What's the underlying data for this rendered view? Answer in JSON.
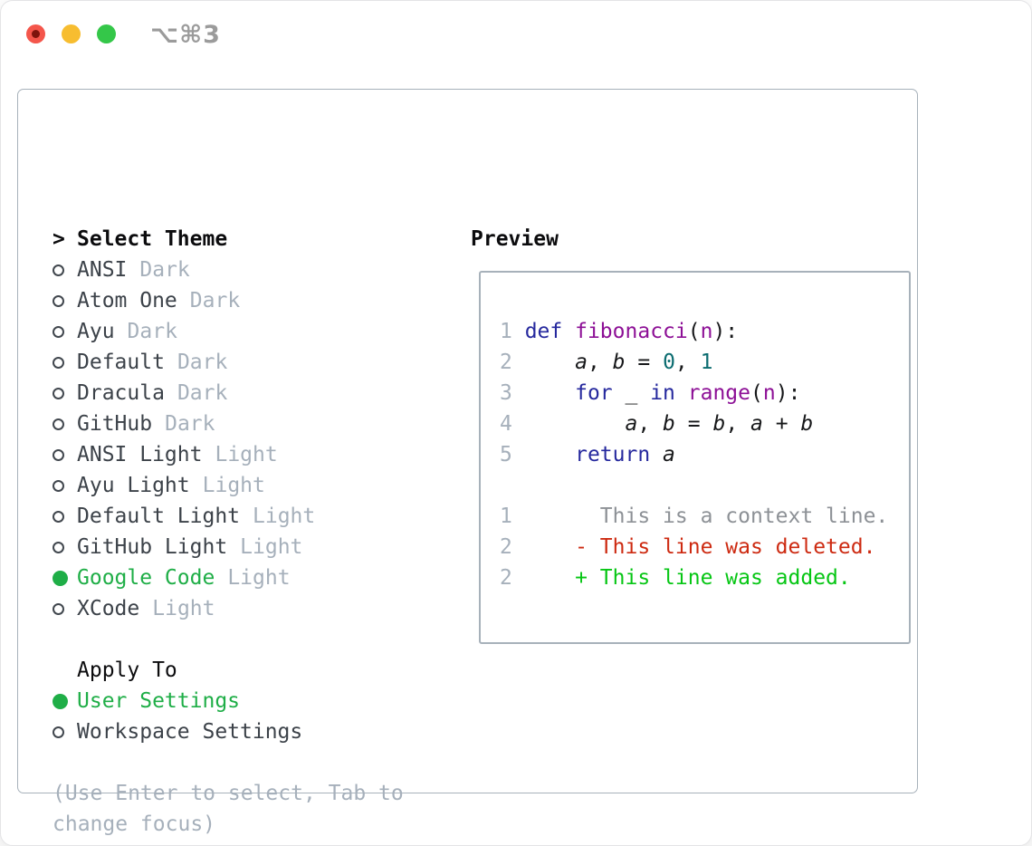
{
  "window": {
    "title": "⌥⌘3"
  },
  "theme_panel": {
    "header": {
      "prompt": ">",
      "label": "Select Theme"
    },
    "themes": [
      {
        "name": "ANSI",
        "variant": "Dark",
        "selected": false
      },
      {
        "name": "Atom One",
        "variant": "Dark",
        "selected": false
      },
      {
        "name": "Ayu",
        "variant": "Dark",
        "selected": false
      },
      {
        "name": "Default",
        "variant": "Dark",
        "selected": false
      },
      {
        "name": "Dracula",
        "variant": "Dark",
        "selected": false
      },
      {
        "name": "GitHub",
        "variant": "Dark",
        "selected": false
      },
      {
        "name": "ANSI Light",
        "variant": "Light",
        "selected": false
      },
      {
        "name": "Ayu Light",
        "variant": "Light",
        "selected": false
      },
      {
        "name": "Default Light",
        "variant": "Light",
        "selected": false
      },
      {
        "name": "GitHub Light",
        "variant": "Light",
        "selected": false
      },
      {
        "name": "Google Code",
        "variant": "Light",
        "selected": true
      },
      {
        "name": "XCode",
        "variant": "Light",
        "selected": false
      }
    ],
    "apply_to": {
      "label": "Apply To",
      "options": [
        {
          "label": "User Settings",
          "selected": true
        },
        {
          "label": "Workspace Settings",
          "selected": false
        }
      ]
    },
    "help_text": "(Use Enter to select, Tab to change focus)"
  },
  "preview": {
    "header": "Preview",
    "lines": [
      [
        [
          "ln",
          "1 "
        ],
        [
          "kw",
          "def"
        ],
        [
          "pl",
          " "
        ],
        [
          "fn",
          "fibonacci"
        ],
        [
          "pl",
          "("
        ],
        [
          "fn",
          "n"
        ],
        [
          "pl",
          "):"
        ]
      ],
      [
        [
          "ln",
          "2 "
        ],
        [
          "pl",
          "    "
        ],
        [
          "va",
          "a"
        ],
        [
          "pl",
          ", "
        ],
        [
          "va",
          "b"
        ],
        [
          "pl",
          " = "
        ],
        [
          "nu",
          "0"
        ],
        [
          "pl",
          ", "
        ],
        [
          "nu",
          "1"
        ]
      ],
      [
        [
          "ln",
          "3 "
        ],
        [
          "pl",
          "    "
        ],
        [
          "kw",
          "for"
        ],
        [
          "pl",
          " _ "
        ],
        [
          "kw",
          "in"
        ],
        [
          "pl",
          " "
        ],
        [
          "fn",
          "range"
        ],
        [
          "pl",
          "("
        ],
        [
          "fn",
          "n"
        ],
        [
          "pl",
          "):"
        ]
      ],
      [
        [
          "ln",
          "4 "
        ],
        [
          "pl",
          "        "
        ],
        [
          "va",
          "a"
        ],
        [
          "pl",
          ", "
        ],
        [
          "va",
          "b"
        ],
        [
          "pl",
          " = "
        ],
        [
          "va",
          "b"
        ],
        [
          "pl",
          ", "
        ],
        [
          "va",
          "a"
        ],
        [
          "pl",
          " + "
        ],
        [
          "va",
          "b"
        ]
      ],
      [
        [
          "ln",
          "5 "
        ],
        [
          "pl",
          "    "
        ],
        [
          "kw",
          "return"
        ],
        [
          "pl",
          " "
        ],
        [
          "va",
          "a"
        ]
      ],
      [],
      [
        [
          "ln",
          "1"
        ],
        [
          "pl",
          "       "
        ],
        [
          "cx",
          "This is a context line."
        ]
      ],
      [
        [
          "ln",
          "2"
        ],
        [
          "pl",
          "     "
        ],
        [
          "de",
          "- This line was deleted."
        ]
      ],
      [
        [
          "ln",
          "2"
        ],
        [
          "pl",
          "     "
        ],
        [
          "ad",
          "+ This line was added."
        ]
      ]
    ]
  },
  "colors": {
    "ui_green": "#1fae47",
    "tl_red": "#f4564b",
    "tl_red_dot": "#7d140c",
    "tl_yellow": "#f7bd30",
    "tl_green": "#34c749",
    "title_gray": "#9b9b9b",
    "panel_border": "#a7b1ba",
    "text_primary": "#0c0c0e",
    "text_theme": "#3c4249",
    "muted": "#a6b0bb",
    "diff_context": "#8d9196",
    "diff_deleted": "#cd2a11",
    "diff_added": "#06c614",
    "syntax_keyword": "#26299e",
    "syntax_function": "#8d1096",
    "syntax_number": "#0b6c70",
    "syntax_plain": "#17181a"
  }
}
